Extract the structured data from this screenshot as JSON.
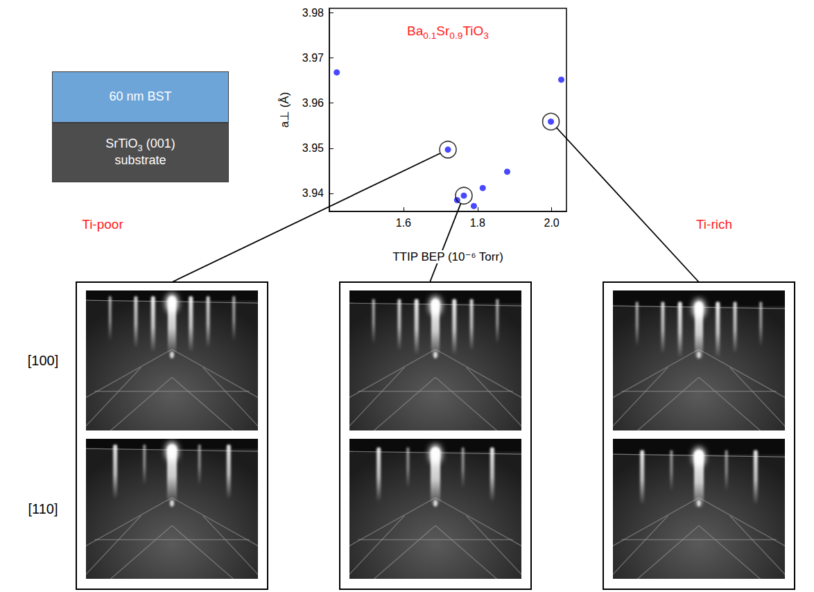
{
  "chart_data": {
    "type": "scatter",
    "title": "Ba0.1Sr0.9TiO3",
    "x_label": "TTIP BEP (10⁻⁶ Torr)",
    "y_label": "a⊥ (Å)",
    "xlim": [
      1.4,
      2.04
    ],
    "ylim": [
      3.936,
      3.981
    ],
    "xticks": [
      1.6,
      1.8,
      {
        "value": 2,
        "label": "2.0"
      }
    ],
    "yticks": [
      3.94,
      3.95,
      3.96,
      3.97,
      3.98
    ],
    "grid": false,
    "series": [
      {
        "color": "#1a1aff",
        "marker": "circle",
        "x": [
          1.42,
          1.72,
          1.745,
          1.763,
          1.79,
          1.814,
          1.88,
          1.998,
          2.026
        ],
        "y": [
          3.9668,
          3.9497,
          3.9385,
          3.9395,
          3.9372,
          3.9412,
          3.9448,
          3.9559,
          3.9652
        ]
      },
      {
        "color": "#000000",
        "marker": "ring",
        "x": [
          1.72,
          1.763,
          1.998
        ],
        "y": [
          3.9497,
          3.9395,
          3.9559
        ]
      }
    ]
  },
  "diagram": {
    "layers": [
      "60 nm BST",
      "SrTiO3 (001) substrate"
    ]
  },
  "rheed": {
    "columns": [
      "Ti-poor",
      null,
      "Ti-rich"
    ],
    "rows": [
      "[100]",
      "[110]"
    ]
  }
}
